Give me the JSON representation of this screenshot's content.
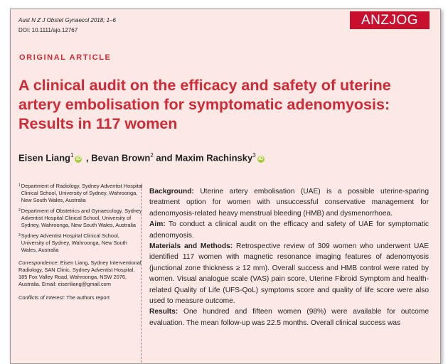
{
  "header": {
    "journal_ref": "Aust N Z J Obstet Gynaecol 2018; 1–6",
    "doi": "DOI: 10.1111/ajo.12767",
    "logo_text": "ANZJOG"
  },
  "article": {
    "section_label": "ORIGINAL ARTICLE",
    "title_lines": [
      "A clinical audit on the efficacy and safety of uterine",
      "artery embolisation for symptomatic adenomyosis:",
      "Results in 117 women"
    ],
    "authors": [
      {
        "name": "Eisen Liang",
        "sup": "1",
        "orcid": true,
        "sep": " , "
      },
      {
        "name": "Bevan Brown",
        "sup": "2",
        "orcid": false,
        "sep": " and "
      },
      {
        "name": "Maxim Rachinsky",
        "sup": "3",
        "orcid": true,
        "sep": ""
      }
    ]
  },
  "affiliations": [
    {
      "num": "1",
      "text": "Department of Radiology, Sydney Adventist Hospital Clinical School, University of Sydney, Wahroonga, New South Wales, Australia"
    },
    {
      "num": "2",
      "text": "Department of Obstetrics and Gynaecology, Sydney Adventist Hospital Clinical School, University of Sydney, Wahroonga, New South Wales, Australia"
    },
    {
      "num": "3",
      "text": "Sydney Adventist Hospital Clinical School, University of Sydney, Wahroonga, New South Wales, Australia"
    }
  ],
  "correspondence": {
    "label": "Correspondence:",
    "text": " Eisen Liang, Sydney Interventional Radiology, SAN Clinic, Sydney Adventist Hospital, 185 Fox Valley Road, Wahroonga, NSW 2076, Australia. Email: eisenliang@gmail.com"
  },
  "conflicts": {
    "label": "Conflicts of Interest:",
    "text": " The authors report"
  },
  "abstract": {
    "background_label": "Background:",
    "background_text": " Uterine artery embolisation (UAE) is a possible uterine-sparing treatment option for women with unsuccessful conservative management for adenomyosis-related heavy menstrual bleeding (HMB) and dysmenorrhoea.",
    "aim_label": "Aim:",
    "aim_text": " To conduct a clinical audit on the efficacy and safety of UAE for symptomatic adenomyosis.",
    "methods_label": "Materials and Methods:",
    "methods_text": " Retrospective review of 309 women who underwent UAE identified 117 women with magnetic resonance imaging features of adenomyosis (junctional zone thickness ≥ 12 mm). Overall success and HMB control were rated by women. Visual analogue scale (VAS) pain score, Uterine Fibroid Symptom and health-related Quality of Life (UFS-QoL) symptoms score and quality of life score were also used to measure outcome.",
    "results_label": "Results:",
    "results_text": " One hundred and fifteen women (98%) were available for outcome evaluation. The mean follow-up was 22.5 months. Overall clinical success was"
  }
}
